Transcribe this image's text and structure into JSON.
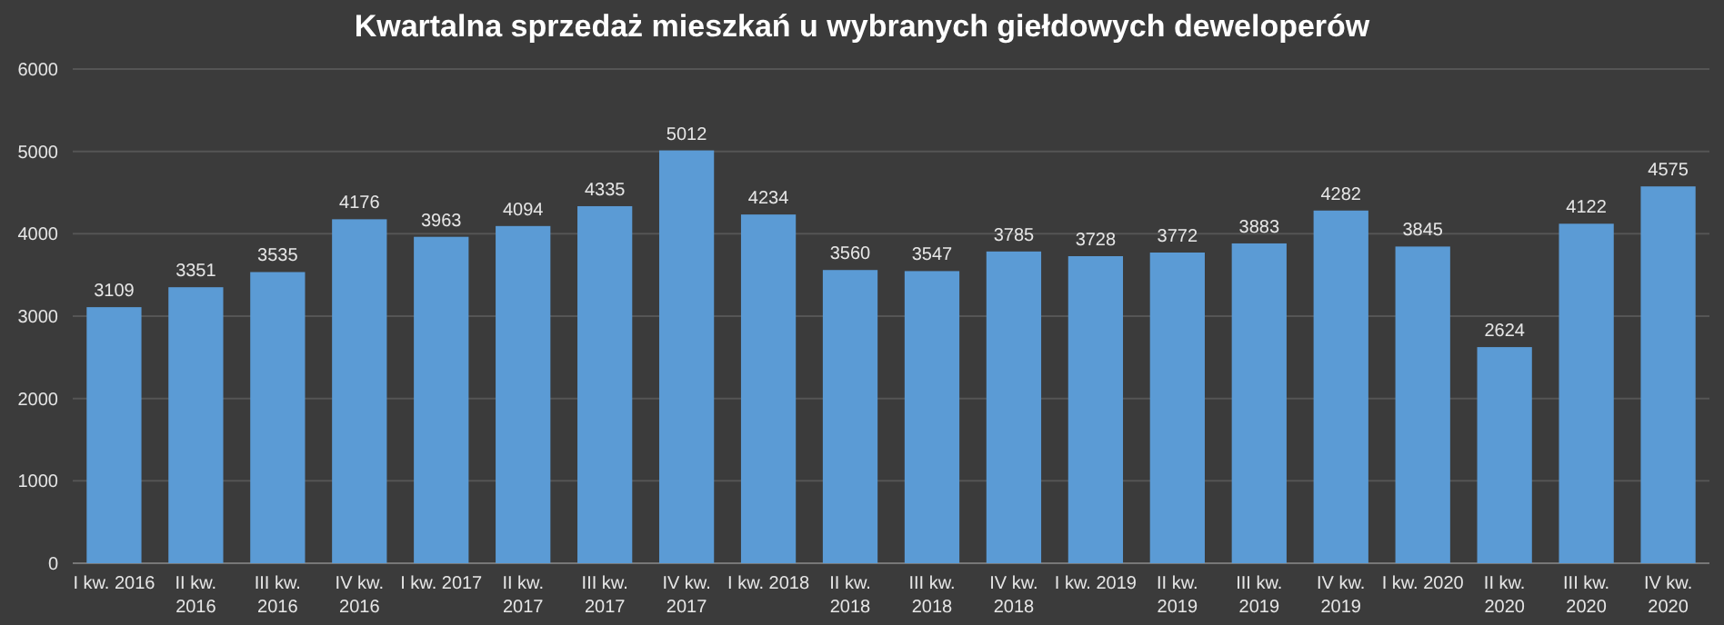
{
  "chart_data": {
    "type": "bar",
    "title": "Kwartalna sprzedaż mieszkań u wybranych giełdowych deweloperów",
    "categories": [
      "I kw. 2016",
      "II kw. 2016",
      "III kw. 2016",
      "IV kw. 2016",
      "I kw. 2017",
      "II kw. 2017",
      "III kw. 2017",
      "IV kw. 2017",
      "I kw. 2018",
      "II kw. 2018",
      "III kw. 2018",
      "IV kw. 2018",
      "I kw. 2019",
      "II kw. 2019",
      "III kw. 2019",
      "IV kw. 2019",
      "I kw. 2020",
      "II kw. 2020",
      "III kw. 2020",
      "IV kw. 2020"
    ],
    "values": [
      3109,
      3351,
      3535,
      4176,
      3963,
      4094,
      4335,
      5012,
      4234,
      3560,
      3547,
      3785,
      3728,
      3772,
      3883,
      4282,
      3845,
      2624,
      4122,
      4575
    ],
    "color": "#5b9bd5",
    "ylim": [
      0,
      6000
    ],
    "yticks": [
      0,
      1000,
      2000,
      3000,
      4000,
      5000,
      6000
    ],
    "grid": "y",
    "data_labels": true
  }
}
